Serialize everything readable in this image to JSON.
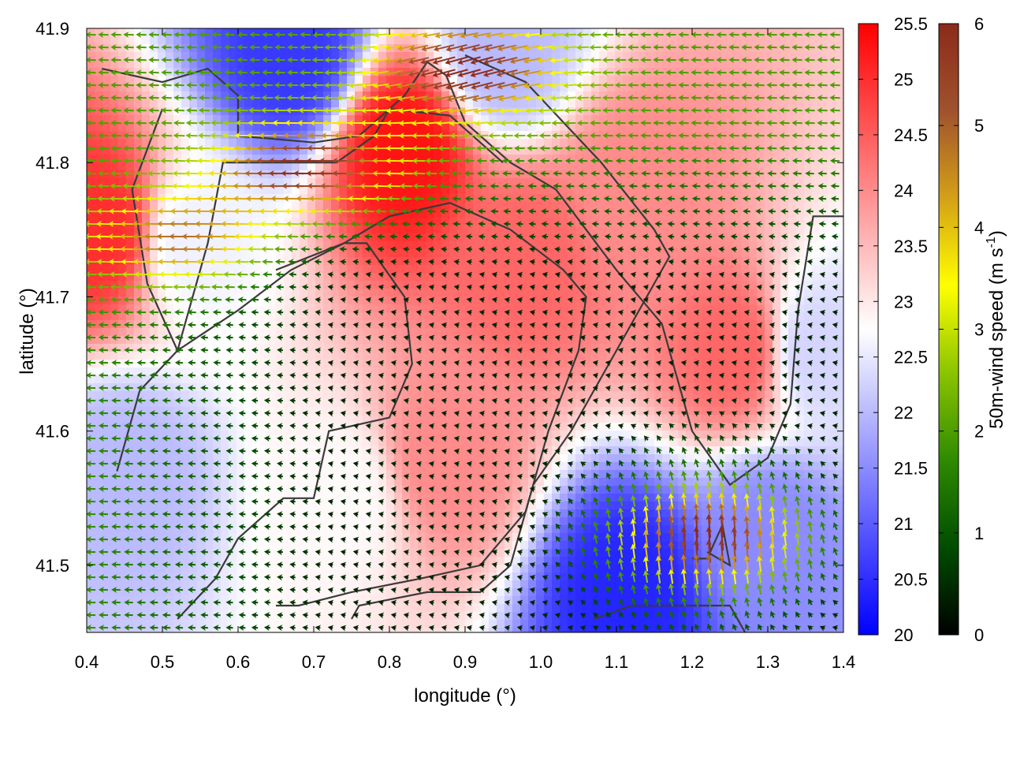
{
  "chart_data": {
    "type": "heatmap",
    "xlabel": "longitude (°)",
    "ylabel": "latitude (°)",
    "xlim": [
      0.4,
      1.4
    ],
    "ylim": [
      41.45,
      41.9
    ],
    "x_ticks": [
      "0.4",
      "0.5",
      "0.6",
      "0.7",
      "0.8",
      "0.9",
      "1.0",
      "1.1",
      "1.2",
      "1.3",
      "1.4"
    ],
    "y_ticks": [
      "41.5",
      "41.6",
      "41.7",
      "41.8",
      "41.9"
    ],
    "temperature_colorbar": {
      "range": [
        20,
        25.5
      ],
      "ticks": [
        "20",
        "20.5",
        "21",
        "21.5",
        "22",
        "22.5",
        "23",
        "23.5",
        "24",
        "24.5",
        "25",
        "25.5"
      ],
      "colors": [
        "#0000ff",
        "#ffffff",
        "#ff0000"
      ]
    },
    "wind_colorbar": {
      "label": "50m-wind speed (m s",
      "label_sup": "-1",
      "label_end": ")",
      "range": [
        0,
        6
      ],
      "ticks": [
        "0",
        "1",
        "2",
        "3",
        "4",
        "5",
        "6"
      ],
      "colors": [
        "#000000",
        "#004d00",
        "#2e8b00",
        "#8bc400",
        "#ffff00",
        "#d4a017",
        "#a0522d",
        "#8b2a1a"
      ]
    },
    "temperature_field_hotspots": [
      {
        "lon": 0.82,
        "lat": 41.81,
        "t": 25.3
      },
      {
        "lon": 0.42,
        "lat": 41.75,
        "t": 25.0
      },
      {
        "lon": 0.98,
        "lat": 41.73,
        "t": 24.4
      },
      {
        "lon": 0.87,
        "lat": 41.58,
        "t": 24.0
      },
      {
        "lon": 1.26,
        "lat": 41.66,
        "t": 24.4
      },
      {
        "lon": 1.12,
        "lat": 41.78,
        "t": 24.0
      },
      {
        "lon": 0.67,
        "lat": 41.88,
        "t": 20.6
      },
      {
        "lon": 1.12,
        "lat": 41.48,
        "t": 20.4
      },
      {
        "lon": 1.3,
        "lat": 41.52,
        "t": 21.5
      },
      {
        "lon": 0.45,
        "lat": 41.57,
        "t": 22.0
      },
      {
        "lon": 0.54,
        "lat": 41.74,
        "t": 22.6
      },
      {
        "lon": 0.74,
        "lat": 41.55,
        "t": 22.8
      },
      {
        "lon": 0.95,
        "lat": 41.88,
        "t": 22.0
      },
      {
        "lon": 1.36,
        "lat": 41.66,
        "t": 22.3
      }
    ],
    "wind_jets": [
      {
        "lon": 0.7,
        "lat": 41.795,
        "speed": 4.2,
        "direction": "westward"
      },
      {
        "lon": 0.9,
        "lat": 41.87,
        "speed": 4.2,
        "direction": "south-westward"
      },
      {
        "lon": 1.22,
        "lat": 41.52,
        "speed": 4.4,
        "direction": "northward"
      },
      {
        "lon": 0.53,
        "lat": 41.74,
        "speed": 3.2,
        "direction": "westward"
      }
    ],
    "contour_paths_lonlat": [
      [
        [
          0.42,
          41.87
        ],
        [
          0.5,
          41.86
        ],
        [
          0.56,
          41.87
        ],
        [
          0.6,
          41.85
        ],
        [
          0.6,
          41.82
        ],
        [
          0.7,
          41.815
        ],
        [
          0.76,
          41.82
        ],
        [
          0.82,
          41.85
        ],
        [
          0.85,
          41.875
        ],
        [
          0.875,
          41.865
        ],
        [
          0.9,
          41.83
        ],
        [
          0.96,
          41.8
        ],
        [
          1.02,
          41.78
        ],
        [
          1.1,
          41.72
        ],
        [
          1.16,
          41.68
        ],
        [
          1.2,
          41.6
        ],
        [
          1.25,
          41.56
        ],
        [
          1.3,
          41.58
        ],
        [
          1.33,
          41.62
        ],
        [
          1.34,
          41.69
        ],
        [
          1.36,
          41.76
        ],
        [
          1.4,
          41.76
        ]
      ],
      [
        [
          0.5,
          41.84
        ],
        [
          0.46,
          41.78
        ],
        [
          0.48,
          41.71
        ],
        [
          0.52,
          41.66
        ],
        [
          0.54,
          41.7
        ],
        [
          0.56,
          41.74
        ],
        [
          0.58,
          41.8
        ],
        [
          0.65,
          41.8
        ],
        [
          0.73,
          41.8
        ],
        [
          0.78,
          41.82
        ],
        [
          0.8,
          41.84
        ],
        [
          0.88,
          41.835
        ],
        [
          0.95,
          41.8
        ]
      ],
      [
        [
          0.44,
          41.57
        ],
        [
          0.47,
          41.63
        ],
        [
          0.52,
          41.66
        ],
        [
          0.6,
          41.69
        ],
        [
          0.67,
          41.72
        ],
        [
          0.74,
          41.74
        ],
        [
          0.8,
          41.76
        ],
        [
          0.88,
          41.77
        ],
        [
          0.96,
          41.75
        ],
        [
          1.03,
          41.72
        ],
        [
          1.06,
          41.7
        ],
        [
          1.05,
          41.66
        ],
        [
          1.01,
          41.6
        ],
        [
          0.98,
          41.54
        ],
        [
          0.92,
          41.5
        ],
        [
          0.84,
          41.49
        ],
        [
          0.75,
          41.48
        ],
        [
          0.68,
          41.47
        ],
        [
          0.65,
          41.47
        ]
      ],
      [
        [
          0.52,
          41.46
        ],
        [
          0.57,
          41.49
        ],
        [
          0.6,
          41.52
        ],
        [
          0.66,
          41.55
        ],
        [
          0.7,
          41.55
        ],
        [
          0.72,
          41.6
        ],
        [
          0.8,
          41.61
        ],
        [
          0.83,
          41.65
        ],
        [
          0.82,
          41.7
        ],
        [
          0.77,
          41.74
        ],
        [
          0.74,
          41.74
        ],
        [
          0.65,
          41.72
        ]
      ],
      [
        [
          0.75,
          41.46
        ],
        [
          0.76,
          41.47
        ],
        [
          0.85,
          41.48
        ],
        [
          0.92,
          41.48
        ],
        [
          0.96,
          41.5
        ],
        [
          0.99,
          41.56
        ],
        [
          1.04,
          41.6
        ],
        [
          1.07,
          41.63
        ],
        [
          1.12,
          41.68
        ],
        [
          1.17,
          41.73
        ],
        [
          1.15,
          41.75
        ],
        [
          1.08,
          41.8
        ],
        [
          1.03,
          41.83
        ],
        [
          0.98,
          41.86
        ],
        [
          0.9,
          41.88
        ]
      ],
      [
        [
          1.2,
          41.505
        ],
        [
          1.22,
          41.505
        ],
        [
          1.24,
          41.53
        ],
        [
          1.25,
          41.5
        ],
        [
          1.22,
          41.51
        ]
      ],
      [
        [
          1.07,
          41.46
        ],
        [
          1.12,
          41.47
        ],
        [
          1.2,
          41.47
        ],
        [
          1.25,
          41.47
        ],
        [
          1.27,
          41.45
        ]
      ]
    ]
  }
}
